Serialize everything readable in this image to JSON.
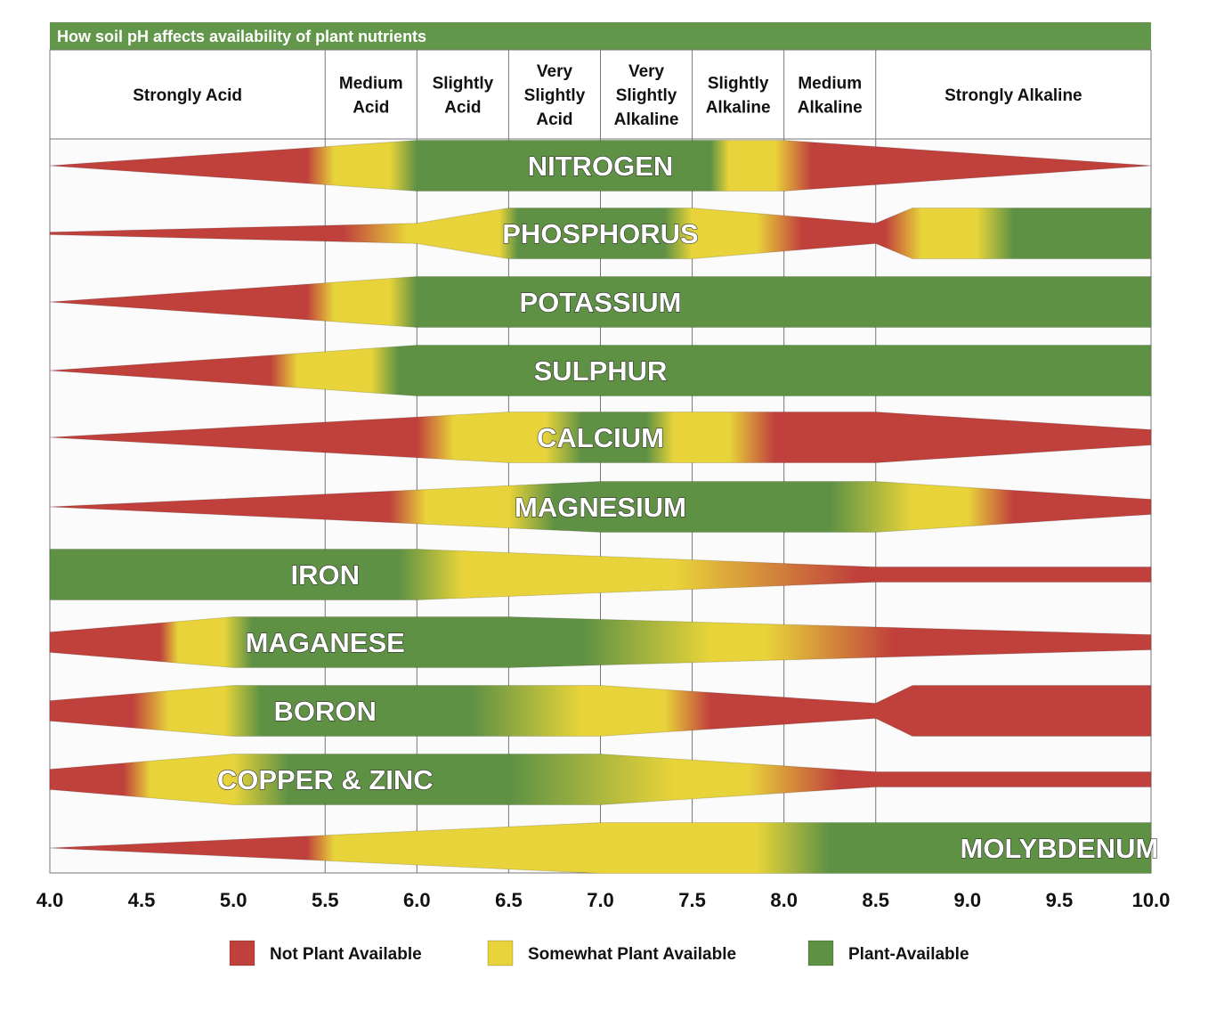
{
  "chart_data": {
    "type": "band-availability",
    "title": "How soil pH affects availability of plant nutrients",
    "xlim": [
      4.0,
      10.0
    ],
    "x_ticks": [
      "4.0",
      "4.5",
      "5.0",
      "5.5",
      "6.0",
      "6.5",
      "7.0",
      "7.5",
      "8.0",
      "8.5",
      "9.0",
      "9.5",
      "10.0"
    ],
    "grid": true,
    "colors": {
      "not": "#c0403c",
      "some": "#e8d43a",
      "avail": "#5e9144",
      "header": "#62964a"
    },
    "ph_classes": [
      {
        "lines": [
          "Strongly Acid"
        ],
        "ph_range": [
          4.0,
          5.5
        ]
      },
      {
        "lines": [
          "Medium",
          "Acid"
        ],
        "ph_range": [
          5.5,
          6.0
        ]
      },
      {
        "lines": [
          "Slightly",
          "Acid"
        ],
        "ph_range": [
          6.0,
          6.5
        ]
      },
      {
        "lines": [
          "Very",
          "Slightly",
          "Acid"
        ],
        "ph_range": [
          6.5,
          7.0
        ]
      },
      {
        "lines": [
          "Very",
          "Slightly",
          "Alkaline"
        ],
        "ph_range": [
          7.0,
          7.5
        ]
      },
      {
        "lines": [
          "Slightly",
          "Alkaline"
        ],
        "ph_range": [
          7.5,
          8.0
        ]
      },
      {
        "lines": [
          "Medium",
          "Alkaline"
        ],
        "ph_range": [
          8.0,
          8.5
        ]
      },
      {
        "lines": [
          "Strongly Alkaline"
        ],
        "ph_range": [
          8.5,
          10.0
        ]
      }
    ],
    "legend": [
      {
        "key": "not",
        "label": "Not Plant Available"
      },
      {
        "key": "some",
        "label": "Somewhat Plant Available"
      },
      {
        "key": "avail",
        "label": "Plant-Available"
      }
    ],
    "series": [
      {
        "name": "NITROGEN",
        "relative_availability": [
          [
            4,
            0
          ],
          [
            6,
            1
          ],
          [
            8,
            1
          ],
          [
            10,
            0
          ]
        ],
        "status": [
          [
            4,
            "not"
          ],
          [
            5.4,
            "not"
          ],
          [
            5.55,
            "some"
          ],
          [
            5.85,
            "some"
          ],
          [
            6.0,
            "avail"
          ],
          [
            7.6,
            "avail"
          ],
          [
            7.7,
            "some"
          ],
          [
            7.95,
            "some"
          ],
          [
            8.15,
            "not"
          ],
          [
            10,
            "not"
          ]
        ]
      },
      {
        "name": "PHOSPHORUS",
        "relative_availability": [
          [
            4,
            0.05
          ],
          [
            6,
            0.4
          ],
          [
            6.5,
            1
          ],
          [
            7.5,
            1
          ],
          [
            8.5,
            0.4
          ],
          [
            8.7,
            1
          ],
          [
            10,
            1
          ]
        ],
        "status": [
          [
            4,
            "not"
          ],
          [
            5.6,
            "not"
          ],
          [
            5.95,
            "some"
          ],
          [
            6.45,
            "some"
          ],
          [
            6.55,
            "avail"
          ],
          [
            7.35,
            "avail"
          ],
          [
            7.5,
            "some"
          ],
          [
            7.85,
            "some"
          ],
          [
            8.1,
            "not"
          ],
          [
            8.55,
            "not"
          ],
          [
            8.75,
            "some"
          ],
          [
            9.05,
            "some"
          ],
          [
            9.25,
            "avail"
          ],
          [
            10,
            "avail"
          ]
        ]
      },
      {
        "name": "POTASSIUM",
        "relative_availability": [
          [
            4,
            0
          ],
          [
            6,
            1
          ],
          [
            10,
            1
          ]
        ],
        "status": [
          [
            4,
            "not"
          ],
          [
            5.4,
            "not"
          ],
          [
            5.55,
            "some"
          ],
          [
            5.85,
            "some"
          ],
          [
            6.0,
            "avail"
          ],
          [
            10,
            "avail"
          ]
        ]
      },
      {
        "name": "SULPHUR",
        "relative_availability": [
          [
            4,
            0
          ],
          [
            6,
            1
          ],
          [
            10,
            1
          ]
        ],
        "status": [
          [
            4,
            "not"
          ],
          [
            5.2,
            "not"
          ],
          [
            5.35,
            "some"
          ],
          [
            5.75,
            "some"
          ],
          [
            5.9,
            "avail"
          ],
          [
            10,
            "avail"
          ]
        ]
      },
      {
        "name": "CALCIUM",
        "relative_availability": [
          [
            4,
            0
          ],
          [
            6.5,
            1
          ],
          [
            8.5,
            1
          ],
          [
            10,
            0.3
          ]
        ],
        "status": [
          [
            4,
            "not"
          ],
          [
            6.0,
            "not"
          ],
          [
            6.2,
            "some"
          ],
          [
            6.7,
            "some"
          ],
          [
            6.9,
            "avail"
          ],
          [
            7.25,
            "avail"
          ],
          [
            7.4,
            "some"
          ],
          [
            7.7,
            "some"
          ],
          [
            7.95,
            "not"
          ],
          [
            10,
            "not"
          ]
        ]
      },
      {
        "name": "MAGNESIUM",
        "relative_availability": [
          [
            4,
            0
          ],
          [
            7,
            1
          ],
          [
            8.5,
            1
          ],
          [
            10,
            0.3
          ]
        ],
        "status": [
          [
            4,
            "not"
          ],
          [
            5.85,
            "not"
          ],
          [
            6.05,
            "some"
          ],
          [
            6.5,
            "some"
          ],
          [
            6.75,
            "avail"
          ],
          [
            8.25,
            "avail"
          ],
          [
            8.7,
            "some"
          ],
          [
            9.0,
            "some"
          ],
          [
            9.25,
            "not"
          ],
          [
            10,
            "not"
          ]
        ]
      },
      {
        "name": "IRON",
        "relative_availability": [
          [
            4,
            1
          ],
          [
            6,
            1
          ],
          [
            8.5,
            0.3
          ],
          [
            10,
            0.3
          ]
        ],
        "status": [
          [
            4,
            "avail"
          ],
          [
            5.9,
            "avail"
          ],
          [
            6.25,
            "some"
          ],
          [
            7.4,
            "some"
          ],
          [
            8.4,
            "not"
          ],
          [
            10,
            "not"
          ]
        ]
      },
      {
        "name": "MAGANESE",
        "relative_availability": [
          [
            4,
            0.4
          ],
          [
            5,
            1
          ],
          [
            6.5,
            1
          ],
          [
            10,
            0.3
          ]
        ],
        "status": [
          [
            4,
            "not"
          ],
          [
            4.6,
            "not"
          ],
          [
            4.7,
            "some"
          ],
          [
            4.95,
            "some"
          ],
          [
            5.1,
            "avail"
          ],
          [
            6.9,
            "avail"
          ],
          [
            7.6,
            "some"
          ],
          [
            7.9,
            "some"
          ],
          [
            8.6,
            "not"
          ],
          [
            10,
            "not"
          ]
        ]
      },
      {
        "name": "BORON",
        "relative_availability": [
          [
            4,
            0.4
          ],
          [
            5,
            1
          ],
          [
            7,
            1
          ],
          [
            8.5,
            0.3
          ],
          [
            8.7,
            1
          ],
          [
            10,
            1
          ]
        ],
        "status": [
          [
            4,
            "not"
          ],
          [
            4.45,
            "not"
          ],
          [
            4.65,
            "some"
          ],
          [
            4.95,
            "some"
          ],
          [
            5.15,
            "avail"
          ],
          [
            6.3,
            "avail"
          ],
          [
            6.9,
            "some"
          ],
          [
            7.35,
            "some"
          ],
          [
            7.6,
            "not"
          ],
          [
            10,
            "not"
          ]
        ]
      },
      {
        "name": "COPPER & ZINC",
        "relative_availability": [
          [
            4,
            0.4
          ],
          [
            5,
            1
          ],
          [
            7,
            1
          ],
          [
            8.5,
            0.3
          ],
          [
            10,
            0.3
          ]
        ],
        "status": [
          [
            4,
            "not"
          ],
          [
            4.4,
            "not"
          ],
          [
            4.55,
            "some"
          ],
          [
            5.0,
            "some"
          ],
          [
            5.3,
            "avail"
          ],
          [
            6.5,
            "avail"
          ],
          [
            7.4,
            "some"
          ],
          [
            7.8,
            "some"
          ],
          [
            8.3,
            "not"
          ],
          [
            10,
            "not"
          ]
        ]
      },
      {
        "name": "MOLYBDENUM",
        "relative_availability": [
          [
            4,
            0
          ],
          [
            7,
            1
          ],
          [
            10,
            1
          ]
        ],
        "status": [
          [
            4,
            "not"
          ],
          [
            5.4,
            "not"
          ],
          [
            5.55,
            "some"
          ],
          [
            7.85,
            "some"
          ],
          [
            8.25,
            "avail"
          ],
          [
            10,
            "avail"
          ]
        ]
      }
    ]
  }
}
